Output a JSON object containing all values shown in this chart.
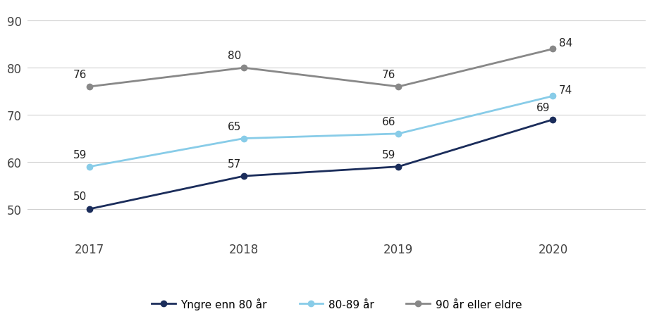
{
  "years": [
    2017,
    2018,
    2019,
    2020
  ],
  "series": [
    {
      "label": "Yngre enn 80 år",
      "values": [
        50,
        57,
        59,
        69
      ],
      "color": "#1b2d5b",
      "marker": "o",
      "linestyle": "-"
    },
    {
      "label": "80-89 år",
      "values": [
        59,
        65,
        66,
        74
      ],
      "color": "#88cce8",
      "marker": "o",
      "linestyle": "-"
    },
    {
      "label": "90 år eller eldre",
      "values": [
        76,
        80,
        76,
        84
      ],
      "color": "#888888",
      "marker": "o",
      "linestyle": "-"
    }
  ],
  "ylim": [
    44,
    93
  ],
  "yticks": [
    50,
    60,
    70,
    80,
    90
  ],
  "xticks": [
    2017,
    2018,
    2019,
    2020
  ],
  "background_color": "#ffffff",
  "grid_color": "#d0d0d0",
  "annotation_fontsize": 11,
  "tick_fontsize": 12
}
